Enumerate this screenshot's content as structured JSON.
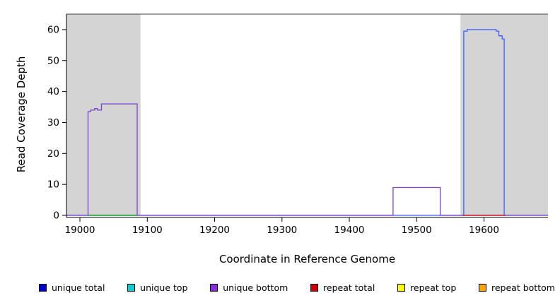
{
  "chart_data": {
    "type": "line",
    "title": "",
    "xlabel": "Coordinate in Reference Genome",
    "ylabel": "Read Coverage Depth",
    "xlim": [
      18980,
      19695
    ],
    "ylim": [
      0,
      65
    ],
    "xticks": [
      19000,
      19100,
      19200,
      19300,
      19400,
      19500,
      19600
    ],
    "yticks": [
      0,
      10,
      20,
      30,
      40,
      50,
      60
    ],
    "grid": false,
    "top_border_y": 65,
    "shaded_regions": [
      {
        "x0": 18980,
        "x1": 19090,
        "color": "#d4d4d4"
      },
      {
        "x0": 19565,
        "x1": 19695,
        "color": "#d4d4d4"
      }
    ],
    "series": [
      {
        "name": "unique total",
        "color": "#3b5bff",
        "points": [
          [
            18980,
            0
          ],
          [
            19570,
            0
          ],
          [
            19570,
            59.5
          ],
          [
            19575,
            59.5
          ],
          [
            19575,
            60
          ],
          [
            19618,
            60
          ],
          [
            19618,
            59.5
          ],
          [
            19622,
            59.5
          ],
          [
            19622,
            58
          ],
          [
            19627,
            58
          ],
          [
            19627,
            57
          ],
          [
            19630,
            57
          ],
          [
            19630,
            0
          ],
          [
            19695,
            0
          ]
        ]
      },
      {
        "name": "unique bottom",
        "color": "#7b42cc",
        "points": [
          [
            18980,
            0
          ],
          [
            19012,
            0
          ],
          [
            19012,
            33.5
          ],
          [
            19016,
            33.5
          ],
          [
            19016,
            34
          ],
          [
            19022,
            34
          ],
          [
            19022,
            34.5
          ],
          [
            19026,
            34.5
          ],
          [
            19026,
            34
          ],
          [
            19032,
            34
          ],
          [
            19032,
            36
          ],
          [
            19085,
            36
          ],
          [
            19085,
            0
          ],
          [
            19465,
            0
          ],
          [
            19465,
            9
          ],
          [
            19535,
            9
          ],
          [
            19535,
            0
          ],
          [
            19695,
            0
          ]
        ]
      },
      {
        "name": "unique top",
        "color": "#00a000",
        "points": [
          [
            19012,
            0
          ],
          [
            19085,
            0
          ]
        ]
      },
      {
        "name": "repeat total",
        "color": "#cc0000",
        "points": [
          [
            19568,
            0
          ],
          [
            19632,
            0
          ]
        ]
      }
    ],
    "legend": [
      {
        "label": "unique total",
        "color": "#0000cc"
      },
      {
        "label": "unique top",
        "color": "#00cdcd"
      },
      {
        "label": "unique bottom",
        "color": "#8a2be2"
      },
      {
        "label": "repeat total",
        "color": "#cc0000"
      },
      {
        "label": "repeat top",
        "color": "#ffff00"
      },
      {
        "label": "repeat bottom",
        "color": "#ffa500"
      }
    ],
    "legend_position": "bottom"
  }
}
